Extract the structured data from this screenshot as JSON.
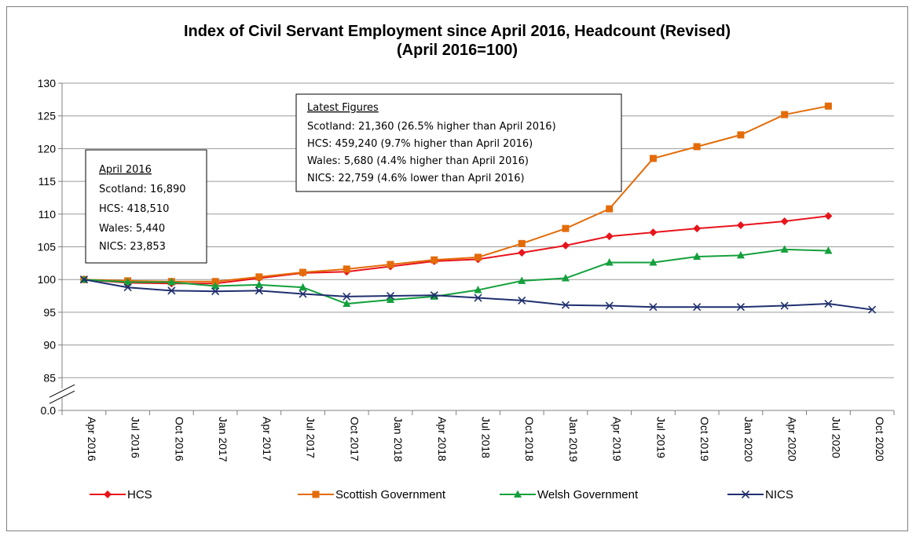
{
  "chart_data": {
    "type": "line",
    "title": "Index of Civil Servant Employment since April 2016, Headcount (Revised)",
    "subtitle": "(April 2016=100)",
    "categories": [
      "Apr 2016",
      "Jul 2016",
      "Oct 2016",
      "Jan 2017",
      "Apr 2017",
      "Jul 2017",
      "Oct 2017",
      "Jan 2018",
      "Apr 2018",
      "Jul 2018",
      "Oct 2018",
      "Jan 2019",
      "Apr 2019",
      "Jul 2019",
      "Oct 2019",
      "Jan 2020",
      "Apr 2020",
      "Jul 2020",
      "Oct 2020"
    ],
    "y_ticks": [
      "130",
      "125",
      "120",
      "115",
      "110",
      "105",
      "100",
      "95",
      "90",
      "85",
      "0.0"
    ],
    "y_tick_values": [
      130,
      125,
      120,
      115,
      110,
      105,
      100,
      95,
      90,
      85,
      80
    ],
    "ylim": [
      80,
      130
    ],
    "axis_break": true,
    "grid": true,
    "legend_position": "bottom",
    "series": [
      {
        "name": "HCS",
        "color": "#e8141c",
        "marker": "diamond",
        "values": [
          100,
          99.5,
          99.4,
          99.4,
          100.2,
          101.0,
          101.2,
          102.0,
          102.8,
          103.1,
          104.1,
          105.2,
          106.6,
          107.2,
          107.8,
          108.3,
          108.9,
          109.7,
          null
        ]
      },
      {
        "name": "Scottish Government",
        "color": "#e36c09",
        "marker": "square",
        "values": [
          100,
          99.8,
          99.7,
          99.7,
          100.4,
          101.1,
          101.6,
          102.3,
          103.0,
          103.4,
          105.5,
          107.8,
          110.8,
          118.5,
          120.3,
          122.1,
          125.2,
          126.5,
          null
        ]
      },
      {
        "name": "Welsh Government",
        "color": "#14a03c",
        "marker": "triangle",
        "values": [
          100,
          99.6,
          99.6,
          99.0,
          99.2,
          98.8,
          96.3,
          96.9,
          97.4,
          98.4,
          99.8,
          100.2,
          102.6,
          102.6,
          103.5,
          103.7,
          104.6,
          104.4,
          null
        ]
      },
      {
        "name": "NICS",
        "color": "#1f2f6e",
        "marker": "x",
        "values": [
          100,
          98.8,
          98.3,
          98.2,
          98.3,
          97.8,
          97.4,
          97.5,
          97.6,
          97.2,
          96.8,
          96.1,
          96.0,
          95.8,
          95.8,
          95.8,
          96.0,
          96.3,
          95.4
        ]
      }
    ],
    "annotations": {
      "april_box": {
        "heading": "April 2016",
        "lines": [
          "Scotland: 16,890",
          "HCS: 418,510",
          "Wales: 5,440",
          "NICS: 23,853"
        ]
      },
      "latest_box": {
        "heading": "Latest Figures",
        "lines": [
          "Scotland: 21,360 (26.5% higher than April 2016)",
          "HCS: 459,240 (9.7% higher than April 2016)",
          "Wales: 5,680 (4.4% higher than April 2016)",
          "NICS: 22,759 (4.6% lower than April 2016)"
        ]
      }
    }
  }
}
